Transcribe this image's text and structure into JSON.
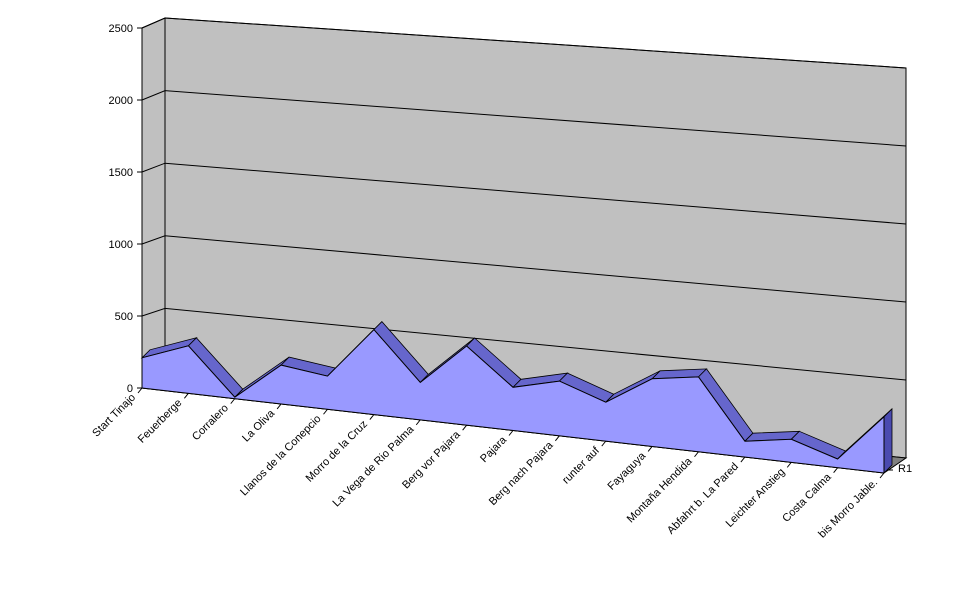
{
  "chart_data": {
    "type": "area",
    "view": "3d",
    "grid": true,
    "legend": "none",
    "ylim": [
      0,
      2500
    ],
    "y_ticks": [
      "0",
      "500",
      "1000",
      "1500",
      "2000",
      "2500"
    ],
    "categories": [
      "Start Tinajo",
      "Feuerberge",
      "Corralero",
      "La Oliva",
      "Llanos de la Conepcio",
      "Morro de la Cruz",
      "La Vega de Rio Palma",
      "Berg vor Pajara",
      "Pajara",
      "Berg nach Pajara",
      "runter auf",
      "Fayaguya",
      "Montaña Hendida",
      "Abfahrt b. La Pared",
      "Leichter Anstieg",
      "Costa Calma",
      "bis Morro Jable."
    ],
    "series": [
      {
        "name": "",
        "values": [
          210,
          330,
          10,
          270,
          230,
          590,
          260,
          550,
          300,
          380,
          270,
          470,
          520,
          110,
          160,
          60,
          390
        ]
      }
    ],
    "depth_label": "R1",
    "colors": {
      "front": "#9999ff",
      "top": "#6666cc",
      "side": "#4a4ab0",
      "wall": "#c0c0c0",
      "floor": "#808080",
      "grid": "#000000"
    }
  }
}
